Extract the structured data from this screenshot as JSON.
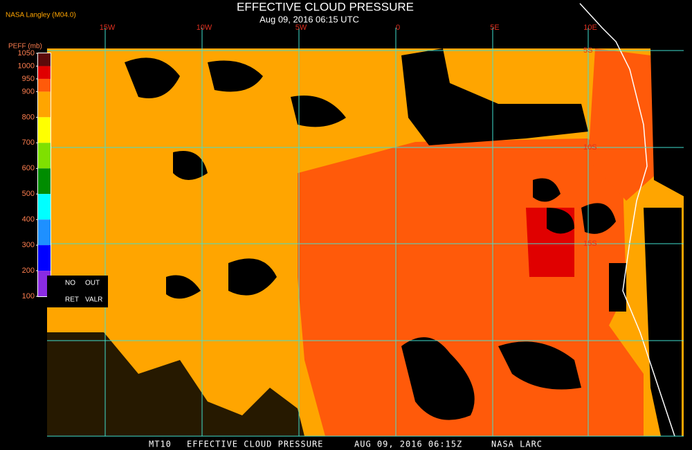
{
  "header": {
    "title": "EFFECTIVE CLOUD PRESSURE",
    "subtitle": "Aug 09, 2016 06:15 UTC",
    "source": "NASA Langley (M04.0)"
  },
  "colorbar": {
    "label": "PEFF (mb)",
    "ticks": [
      1050,
      1000,
      950,
      900,
      800,
      700,
      600,
      500,
      400,
      300,
      200,
      100
    ],
    "colors": [
      "#5c0a0a",
      "#e00000",
      "#ff5a0a",
      "#ffa500",
      "#ffff00",
      "#7fe000",
      "#008c00",
      "#00ffff",
      "#1e90ff",
      "#0000ff",
      "#8a2be2"
    ]
  },
  "legend_box": {
    "row1": [
      "NO",
      "OUT"
    ],
    "row2": [
      "RET",
      "VALR"
    ]
  },
  "grid": {
    "lon_labels": [
      "15W",
      "10W",
      "5W",
      "0",
      "5E",
      "10E"
    ],
    "lat_labels": [
      "5S",
      "10S",
      "15S"
    ]
  },
  "footer": [
    "MT10",
    "EFFECTIVE CLOUD PRESSURE",
    "AUG 09, 2016 06:15Z",
    "NASA LARC"
  ]
}
